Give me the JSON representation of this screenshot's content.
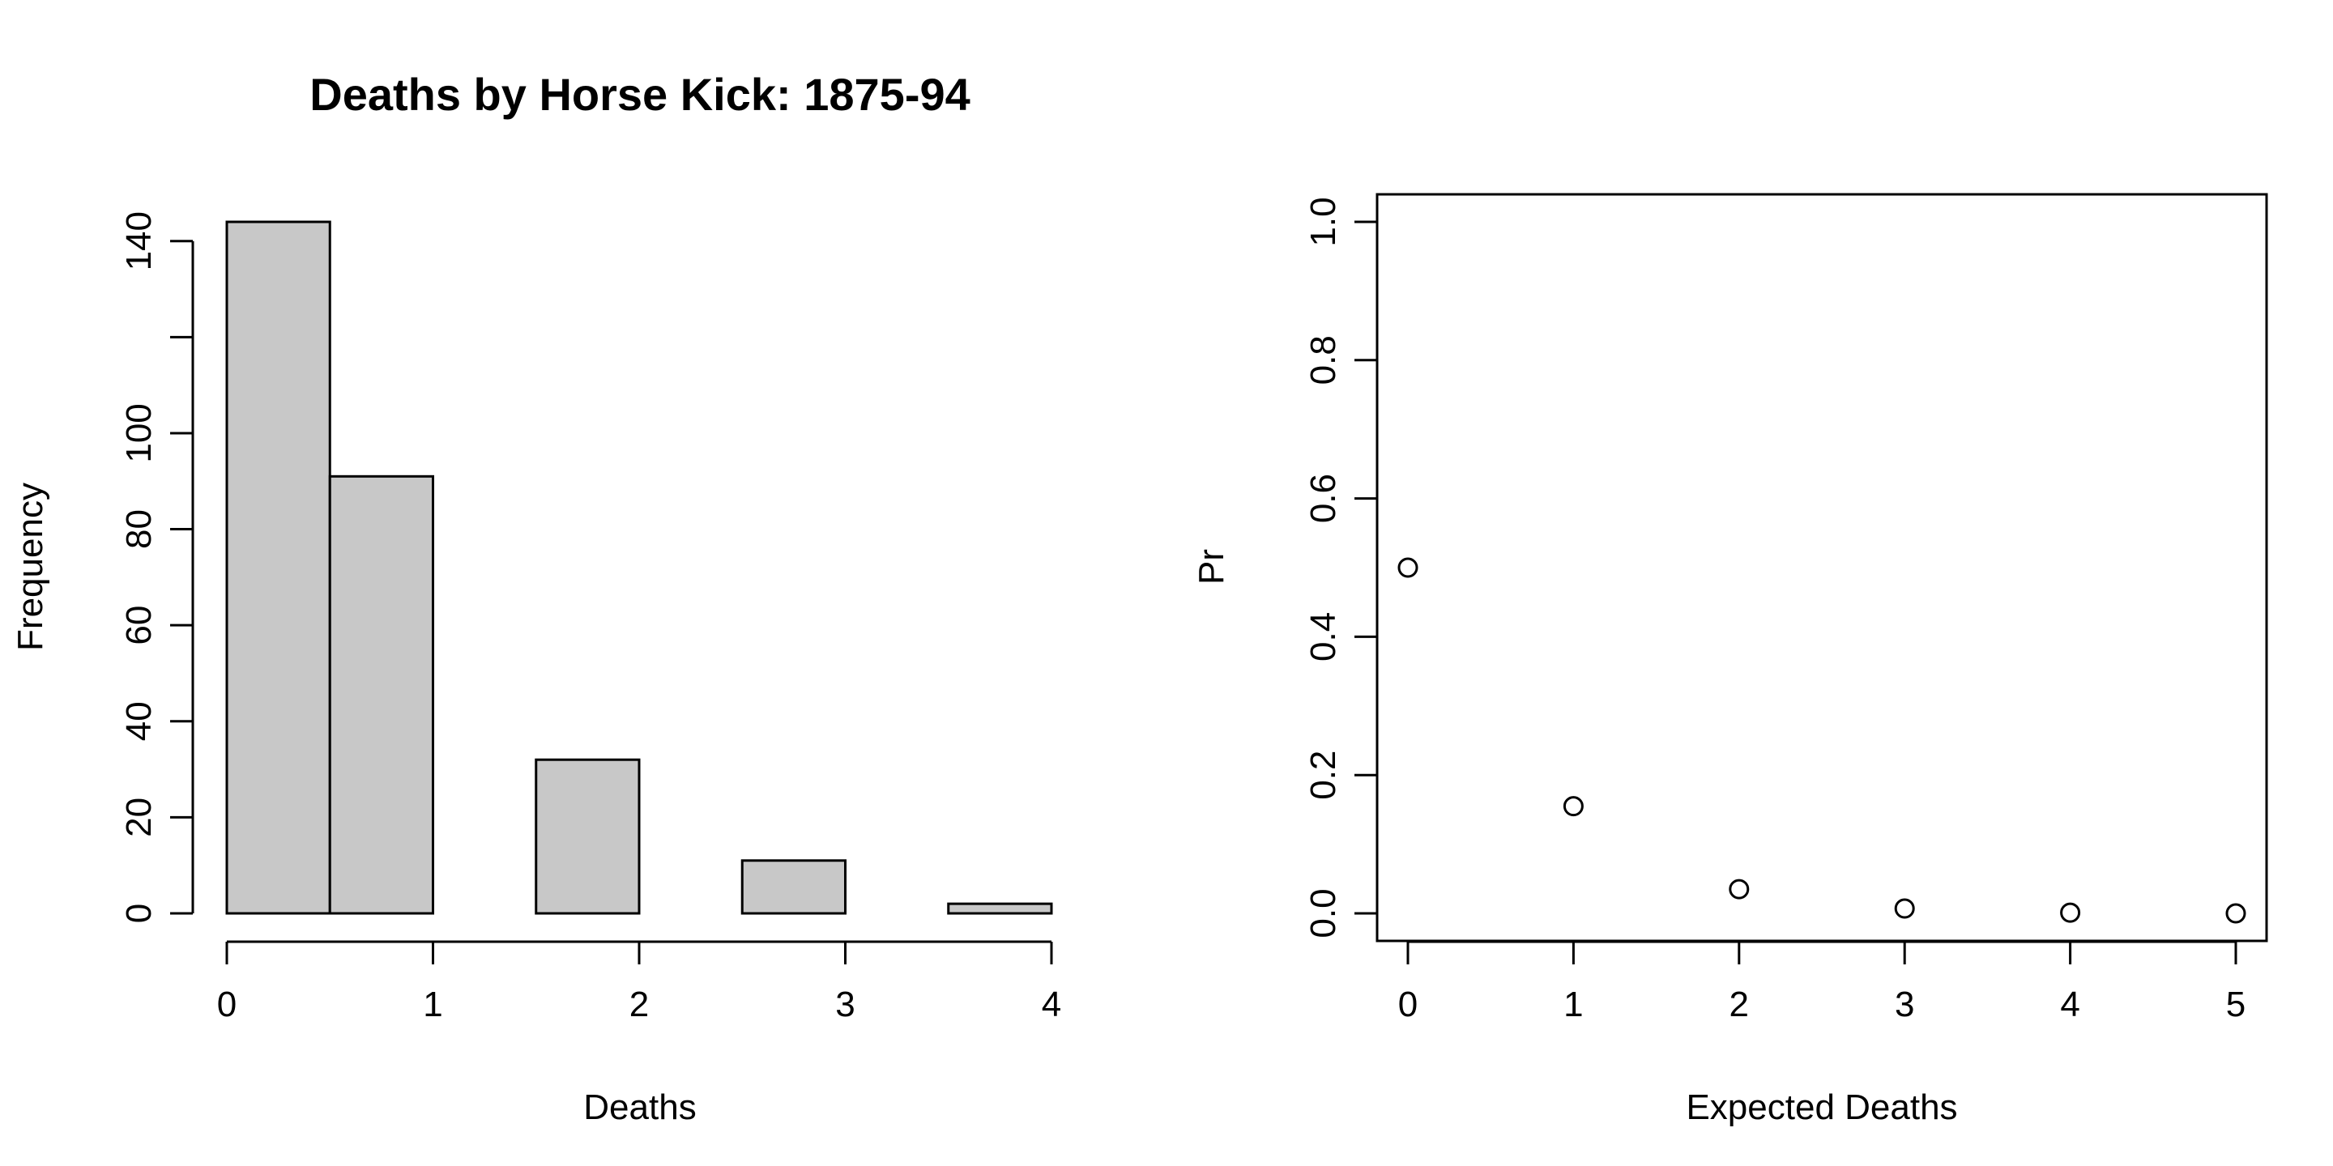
{
  "chart_data": [
    {
      "type": "bar",
      "title": "Deaths by Horse Kick: 1875-94",
      "xlabel": "Deaths",
      "ylabel": "Frequency",
      "bins": [
        {
          "x0": 0,
          "x1": 0.5,
          "value": 144
        },
        {
          "x0": 0.5,
          "x1": 1,
          "value": 91
        },
        {
          "x0": 1,
          "x1": 1.5,
          "value": 0
        },
        {
          "x0": 1.5,
          "x1": 2,
          "value": 32
        },
        {
          "x0": 2,
          "x1": 2.5,
          "value": 0
        },
        {
          "x0": 2.5,
          "x1": 3,
          "value": 11
        },
        {
          "x0": 3,
          "x1": 3.5,
          "value": 0
        },
        {
          "x0": 3.5,
          "x1": 4,
          "value": 2
        }
      ],
      "xlim": [
        0,
        4
      ],
      "ylim": [
        0,
        144
      ],
      "xticks": [
        "0",
        "1",
        "2",
        "3",
        "4"
      ],
      "yticks": [
        "0",
        "20",
        "40",
        "60",
        "80",
        "100",
        "140"
      ],
      "bar_color": "#c8c8c8",
      "grid": false
    },
    {
      "type": "scatter",
      "title": "",
      "xlabel": "Expected Deaths",
      "ylabel": "Pr",
      "x": [
        0,
        1,
        2,
        3,
        4,
        5
      ],
      "y": [
        0.5,
        0.155,
        0.035,
        0.007,
        0.001,
        0.0
      ],
      "xlim": [
        -0.2,
        5.2
      ],
      "ylim": [
        -0.04,
        1.04
      ],
      "xticks": [
        "0",
        "1",
        "2",
        "3",
        "4",
        "5"
      ],
      "yticks": [
        "0.0",
        "0.2",
        "0.4",
        "0.6",
        "0.8",
        "1.0"
      ],
      "marker": "open-circle",
      "grid": false
    }
  ]
}
